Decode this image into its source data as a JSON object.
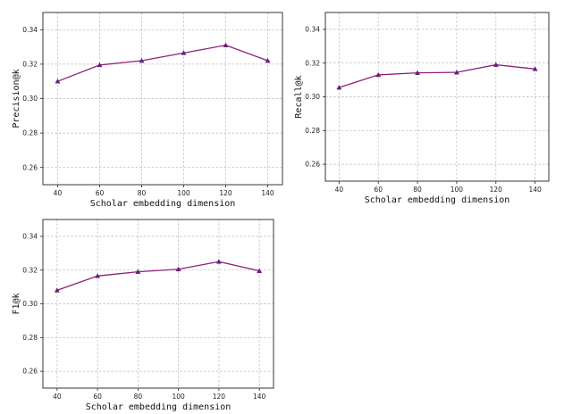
{
  "chart_data": [
    {
      "type": "line",
      "title": "",
      "xlabel": "Scholar embedding dimension",
      "ylabel": "Precision@k",
      "x": [
        40,
        60,
        80,
        100,
        120,
        140
      ],
      "xticks": [
        "40",
        "60",
        "80",
        "100",
        "120",
        "140"
      ],
      "yticks": [
        "0.26",
        "0.28",
        "0.30",
        "0.32",
        "0.34"
      ],
      "ylim": [
        0.25,
        0.35
      ],
      "grid": true,
      "marker": "triangle",
      "line_color": "#8e1f7a",
      "marker_color": "#4a2a7a",
      "series": [
        {
          "values": [
            0.31,
            0.3195,
            0.322,
            0.3265,
            0.331,
            0.322
          ]
        }
      ]
    },
    {
      "type": "line",
      "title": "",
      "xlabel": "Scholar embedding dimension",
      "ylabel": "Recall@k",
      "x": [
        40,
        60,
        80,
        100,
        120,
        140
      ],
      "xticks": [
        "40",
        "60",
        "80",
        "100",
        "120",
        "140"
      ],
      "yticks": [
        "0.26",
        "0.28",
        "0.30",
        "0.32",
        "0.34"
      ],
      "ylim": [
        0.25,
        0.35
      ],
      "grid": true,
      "marker": "triangle",
      "line_color": "#8e1f7a",
      "marker_color": "#4a2a7a",
      "series": [
        {
          "values": [
            0.3055,
            0.313,
            0.3142,
            0.3145,
            0.319,
            0.3165
          ]
        }
      ]
    },
    {
      "type": "line",
      "title": "",
      "xlabel": "Scholar embedding dimension",
      "ylabel": "F1@k",
      "x": [
        40,
        60,
        80,
        100,
        120,
        140
      ],
      "xticks": [
        "40",
        "60",
        "80",
        "100",
        "120",
        "140"
      ],
      "yticks": [
        "0.26",
        "0.28",
        "0.30",
        "0.32",
        "0.34"
      ],
      "ylim": [
        0.25,
        0.35
      ],
      "grid": true,
      "marker": "triangle",
      "line_color": "#8e1f7a",
      "marker_color": "#4a2a7a",
      "series": [
        {
          "values": [
            0.308,
            0.3165,
            0.319,
            0.3205,
            0.325,
            0.3195
          ]
        }
      ]
    }
  ]
}
